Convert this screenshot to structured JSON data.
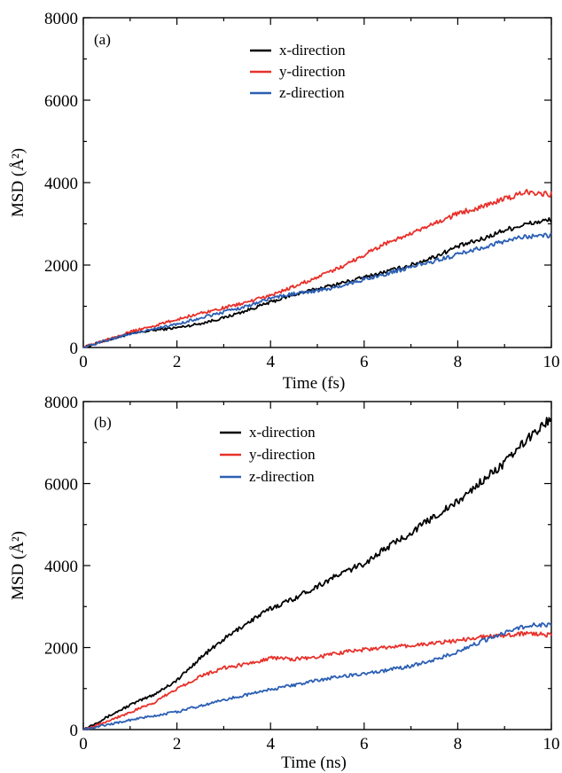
{
  "chart_data": [
    {
      "type": "line",
      "panel_label": "(a)",
      "xlabel": "Time (fs)",
      "ylabel": "MSD (Å²)",
      "xlim": [
        0,
        10
      ],
      "ylim": [
        0,
        8000
      ],
      "xticks": [
        0,
        2,
        4,
        6,
        8,
        10
      ],
      "yticks": [
        0,
        2000,
        4000,
        6000,
        8000
      ],
      "legend": "top-center",
      "grid": false,
      "series": [
        {
          "name": "x-direction",
          "color": "#000000",
          "x": [
            0,
            0.5,
            1,
            1.5,
            2,
            2.5,
            3,
            3.5,
            4,
            4.5,
            5,
            5.5,
            6,
            6.5,
            7,
            7.5,
            8,
            8.5,
            9,
            9.5,
            10
          ],
          "y": [
            0,
            180,
            330,
            420,
            480,
            580,
            720,
            900,
            1100,
            1280,
            1420,
            1560,
            1700,
            1850,
            2000,
            2200,
            2450,
            2620,
            2850,
            3000,
            3100
          ]
        },
        {
          "name": "y-direction",
          "color": "#e8312b",
          "x": [
            0,
            0.5,
            1,
            1.5,
            2,
            2.5,
            3,
            3.5,
            4,
            4.5,
            5,
            5.5,
            6,
            6.5,
            7,
            7.5,
            8,
            8.5,
            9,
            9.5,
            10
          ],
          "y": [
            0,
            200,
            380,
            520,
            680,
            830,
            960,
            1100,
            1260,
            1480,
            1700,
            1950,
            2250,
            2550,
            2750,
            3000,
            3250,
            3420,
            3600,
            3780,
            3720
          ]
        },
        {
          "name": "z-direction",
          "color": "#2b5fb4",
          "x": [
            0,
            0.5,
            1,
            1.5,
            2,
            2.5,
            3,
            3.5,
            4,
            4.5,
            5,
            5.5,
            6,
            6.5,
            7,
            7.5,
            8,
            8.5,
            9,
            9.5,
            10
          ],
          "y": [
            0,
            170,
            330,
            450,
            560,
            720,
            860,
            1000,
            1200,
            1300,
            1380,
            1480,
            1650,
            1800,
            1950,
            2100,
            2250,
            2420,
            2580,
            2700,
            2720
          ]
        }
      ]
    },
    {
      "type": "line",
      "panel_label": "(b)",
      "xlabel": "Time (ns)",
      "ylabel": "MSD (Å²)",
      "xlim": [
        0,
        10
      ],
      "ylim": [
        0,
        8000
      ],
      "xticks": [
        0,
        2,
        4,
        6,
        8,
        10
      ],
      "yticks": [
        0,
        2000,
        4000,
        6000,
        8000
      ],
      "legend": "top-left",
      "grid": false,
      "series": [
        {
          "name": "x-direction",
          "color": "#000000",
          "x": [
            0,
            0.5,
            1,
            1.5,
            2,
            2.5,
            3,
            3.5,
            4,
            4.5,
            5,
            5.5,
            6,
            6.5,
            7,
            7.5,
            8,
            8.5,
            9,
            9.5,
            10
          ],
          "y": [
            0,
            300,
            600,
            850,
            1200,
            1750,
            2200,
            2600,
            2950,
            3200,
            3500,
            3800,
            4050,
            4450,
            4800,
            5200,
            5550,
            6050,
            6500,
            7100,
            7600
          ]
        },
        {
          "name": "y-direction",
          "color": "#e8312b",
          "x": [
            0,
            0.5,
            1,
            1.5,
            2,
            2.5,
            3,
            3.5,
            4,
            4.5,
            5,
            5.5,
            6,
            6.5,
            7,
            7.5,
            8,
            8.5,
            9,
            9.5,
            10
          ],
          "y": [
            0,
            200,
            420,
            650,
            1000,
            1300,
            1500,
            1600,
            1750,
            1720,
            1760,
            1880,
            1950,
            2000,
            2050,
            2100,
            2180,
            2250,
            2300,
            2350,
            2300
          ]
        },
        {
          "name": "z-direction",
          "color": "#2b5fb4",
          "x": [
            0,
            0.5,
            1,
            1.5,
            2,
            2.5,
            3,
            3.5,
            4,
            4.5,
            5,
            5.5,
            6,
            6.5,
            7,
            7.5,
            8,
            8.5,
            9,
            9.5,
            10
          ],
          "y": [
            0,
            120,
            230,
            330,
            430,
            580,
            720,
            850,
            980,
            1080,
            1200,
            1300,
            1350,
            1450,
            1550,
            1700,
            1900,
            2150,
            2350,
            2550,
            2550
          ]
        }
      ]
    }
  ]
}
